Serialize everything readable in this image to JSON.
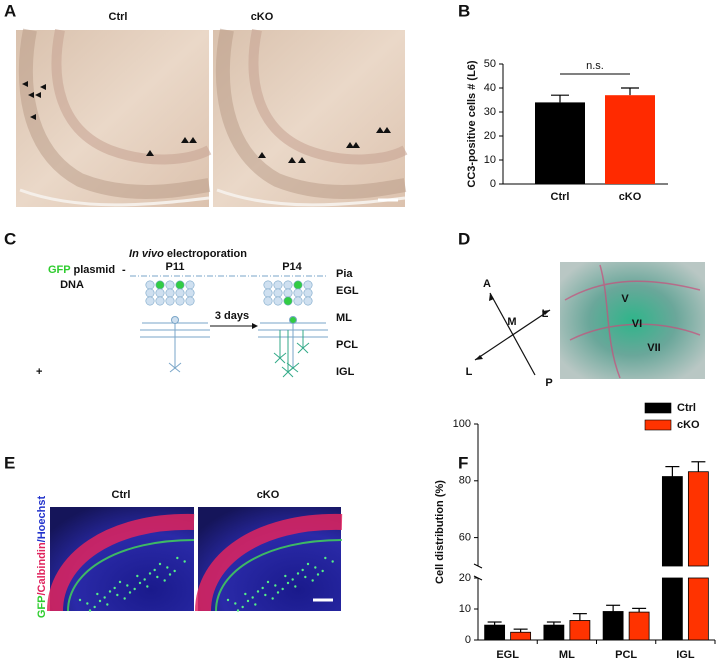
{
  "panel_labels": [
    "A",
    "B",
    "C",
    "D",
    "E",
    "F"
  ],
  "panel_a": {
    "images": [
      "Ctrl",
      "cKO"
    ]
  },
  "chart_data": [
    {
      "type": "bar",
      "ylabel": "CC3-positive cells # (L6)",
      "categories": [
        "Ctrl",
        "cKO"
      ],
      "values": [
        34,
        37
      ],
      "errors": [
        3,
        3
      ],
      "colors": [
        "#000000",
        "#ff2a00"
      ],
      "ylim": [
        0,
        50
      ],
      "yticks": [
        0,
        10,
        20,
        30,
        40,
        50
      ],
      "annotation": "n.s."
    },
    {
      "type": "grouped-bar",
      "ylabel": "Cell distribution (%)",
      "categories": [
        "EGL",
        "ML",
        "PCL",
        "IGL"
      ],
      "series": [
        {
          "name": "Ctrl",
          "color": "#000000",
          "values": [
            4.8,
            4.8,
            9.2,
            81.5
          ],
          "errors": [
            1,
            1,
            2,
            3.5
          ]
        },
        {
          "name": "cKO",
          "color": "#ff3300",
          "values": [
            2.5,
            6.3,
            9.0,
            83.2
          ],
          "errors": [
            1,
            2.2,
            1.2,
            3.5
          ]
        }
      ],
      "ylim": [
        0,
        100
      ],
      "axis_break": [
        20,
        50
      ],
      "yticks": [
        0,
        10,
        20,
        60,
        80,
        100
      ],
      "legend": "top-right"
    }
  ],
  "panel_c": {
    "plasmid": [
      "GFP",
      " plasmid"
    ],
    "dna": "DNA",
    "minus": "-",
    "plus": "+",
    "electroporation": [
      "In vivo",
      " electroporation"
    ],
    "ages": [
      "P11",
      "P14"
    ],
    "interval": "3 days",
    "layers": [
      "Pia",
      "EGL",
      "ML",
      "PCL",
      "IGL"
    ]
  },
  "panel_d": {
    "axes": [
      "A",
      "P",
      "M",
      "L",
      "L"
    ],
    "lobules": [
      "V",
      "VI",
      "VII"
    ]
  },
  "panel_e": {
    "images": [
      "Ctrl",
      "cKO"
    ],
    "stain": [
      "GFP",
      "/Calbindin",
      "/Hoechst"
    ]
  }
}
